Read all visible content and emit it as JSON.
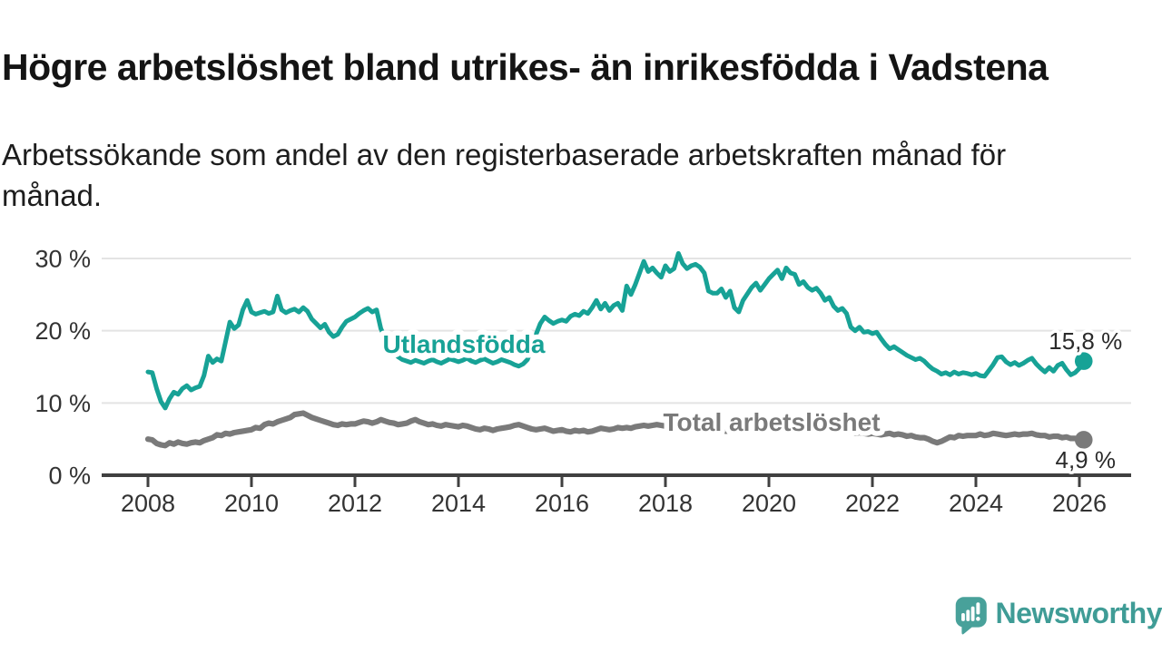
{
  "header": {
    "title": "Högre arbetslöshet bland utrikes- än inrikesfödda i Vadstena",
    "subtitle_lines": [
      "Arbetssökande som andel av den registerbaserade arbetskraften månad för",
      "månad."
    ]
  },
  "colors": {
    "accent_teal": "#17a296",
    "series_gray": "#7a7a7a",
    "grid": "#e4e4e4",
    "axis": "#404040",
    "tick_text": "#333333",
    "value_label_text": "#2b2b2b",
    "logo_teal": "#48a19a",
    "wordmark_teal": "#3f9c96"
  },
  "footer": {
    "brand": "Newsworthy"
  },
  "chart_data": {
    "type": "line",
    "title": "Högre arbetslöshet bland utrikes- än inrikesfödda i Vadstena",
    "subtitle": "Arbetssökande som andel av den registerbaserade arbetskraften månad för månad.",
    "x_unit": "year-month",
    "x_start": 2008.0,
    "x_step_months": 1,
    "xlim": [
      2007.1,
      2027.0
    ],
    "ylim": [
      0,
      32
    ],
    "grid": "horizontal",
    "x_ticks": [
      {
        "value": 2008,
        "label": "2008"
      },
      {
        "value": 2010,
        "label": "2010"
      },
      {
        "value": 2012,
        "label": "2012"
      },
      {
        "value": 2014,
        "label": "2014"
      },
      {
        "value": 2016,
        "label": "2016"
      },
      {
        "value": 2018,
        "label": "2018"
      },
      {
        "value": 2020,
        "label": "2020"
      },
      {
        "value": 2022,
        "label": "2022"
      },
      {
        "value": 2024,
        "label": "2024"
      },
      {
        "value": 2026,
        "label": "2026"
      }
    ],
    "y_ticks": [
      {
        "value": 0,
        "label": "0 %"
      },
      {
        "value": 10,
        "label": "10 %"
      },
      {
        "value": 20,
        "label": "20 %"
      },
      {
        "value": 30,
        "label": "30 %"
      }
    ],
    "series": [
      {
        "name": "Utlandsfödda",
        "color": "#17a296",
        "end_value": 15.8,
        "end_label": "15,8 %",
        "values": [
          14.3,
          14.2,
          12.0,
          10.2,
          9.3,
          10.6,
          11.5,
          11.2,
          12.0,
          12.4,
          11.8,
          12.1,
          12.3,
          13.8,
          16.5,
          15.6,
          16.1,
          15.8,
          18.5,
          21.2,
          20.3,
          20.8,
          22.9,
          24.2,
          22.6,
          22.3,
          22.5,
          22.7,
          22.4,
          22.6,
          24.8,
          22.9,
          22.5,
          22.8,
          23.0,
          22.6,
          23.2,
          22.7,
          21.6,
          21.0,
          20.4,
          20.9,
          19.8,
          19.2,
          19.5,
          20.5,
          21.3,
          21.6,
          21.9,
          22.4,
          22.8,
          23.1,
          22.6,
          22.9,
          20.3,
          19.0,
          17.8,
          17.0,
          16.4,
          16.0,
          15.8,
          15.6,
          15.9,
          15.7,
          15.5,
          15.8,
          16.0,
          15.7,
          15.5,
          15.8,
          16.1,
          15.9,
          15.7,
          15.9,
          16.2,
          15.8,
          15.6,
          15.9,
          16.1,
          15.8,
          15.5,
          15.7,
          16.0,
          15.8,
          15.6,
          15.3,
          15.1,
          15.4,
          16.0,
          17.5,
          19.5,
          21.0,
          21.9,
          21.4,
          21.0,
          21.3,
          21.5,
          21.3,
          22.0,
          22.3,
          22.1,
          22.7,
          22.4,
          23.2,
          24.2,
          23.0,
          23.8,
          22.8,
          23.5,
          23.8,
          22.8,
          26.2,
          25.0,
          26.4,
          28.0,
          29.6,
          28.2,
          28.7,
          28.0,
          27.4,
          29.0,
          28.2,
          28.6,
          30.7,
          29.3,
          28.6,
          29.0,
          29.2,
          28.8,
          28.0,
          25.5,
          25.2,
          25.2,
          25.8,
          24.6,
          25.5,
          23.2,
          22.6,
          24.2,
          25.1,
          26.0,
          26.6,
          25.6,
          26.4,
          27.2,
          27.8,
          28.4,
          27.2,
          28.7,
          28.0,
          27.8,
          26.4,
          26.8,
          26.0,
          25.6,
          25.9,
          25.2,
          24.2,
          24.6,
          23.4,
          22.8,
          23.1,
          22.4,
          20.5,
          20.0,
          20.5,
          19.8,
          19.9,
          19.6,
          19.8,
          18.9,
          18.1,
          17.5,
          17.8,
          17.4,
          17.0,
          16.6,
          16.3,
          16.0,
          16.2,
          15.8,
          15.2,
          14.7,
          14.4,
          14.0,
          14.2,
          13.9,
          14.3,
          14.0,
          14.2,
          14.1,
          13.9,
          14.1,
          13.8,
          13.7,
          14.5,
          15.3,
          16.3,
          16.4,
          15.7,
          15.3,
          15.6,
          15.2,
          15.5,
          15.9,
          16.2,
          15.4,
          14.8,
          14.3,
          14.9,
          14.4,
          15.2,
          15.5,
          14.6,
          13.9,
          14.2,
          14.8,
          15.8
        ]
      },
      {
        "name": "Total arbetslöshet",
        "color": "#7a7a7a",
        "end_value": 4.9,
        "end_label": "4,9 %",
        "values": [
          5.0,
          4.9,
          4.4,
          4.2,
          4.1,
          4.5,
          4.3,
          4.6,
          4.4,
          4.3,
          4.5,
          4.6,
          4.5,
          4.8,
          5.0,
          5.2,
          5.6,
          5.5,
          5.8,
          5.7,
          5.9,
          6.0,
          6.1,
          6.2,
          6.3,
          6.6,
          6.5,
          7.0,
          7.2,
          7.1,
          7.4,
          7.6,
          7.8,
          8.0,
          8.4,
          8.5,
          8.6,
          8.3,
          8.0,
          7.8,
          7.6,
          7.4,
          7.2,
          7.0,
          6.9,
          7.1,
          7.0,
          7.1,
          7.1,
          7.3,
          7.5,
          7.4,
          7.2,
          7.4,
          7.7,
          7.5,
          7.3,
          7.2,
          7.0,
          7.1,
          7.2,
          7.5,
          7.7,
          7.4,
          7.2,
          7.0,
          7.1,
          6.9,
          6.8,
          7.0,
          6.9,
          6.8,
          6.7,
          6.9,
          6.8,
          6.6,
          6.4,
          6.3,
          6.5,
          6.4,
          6.2,
          6.4,
          6.5,
          6.6,
          6.7,
          6.9,
          7.0,
          6.8,
          6.6,
          6.4,
          6.3,
          6.4,
          6.5,
          6.3,
          6.1,
          6.2,
          6.3,
          6.1,
          6.0,
          6.2,
          6.1,
          6.2,
          6.0,
          6.1,
          6.3,
          6.5,
          6.4,
          6.3,
          6.4,
          6.6,
          6.5,
          6.6,
          6.5,
          6.7,
          6.8,
          6.9,
          6.8,
          6.9,
          7.0,
          6.9,
          6.8,
          6.9,
          6.7,
          6.8,
          6.6,
          6.5,
          6.6,
          6.4,
          6.3,
          6.4,
          6.2,
          6.3,
          6.2,
          6.3,
          6.1,
          6.2,
          6.0,
          6.1,
          6.2,
          6.1,
          6.3,
          6.2,
          6.4,
          6.5,
          6.6,
          6.7,
          6.9,
          7.1,
          7.0,
          6.9,
          6.8,
          6.9,
          6.7,
          6.6,
          6.4,
          6.5,
          6.4,
          6.3,
          6.4,
          6.2,
          6.1,
          6.0,
          5.9,
          6.0,
          5.8,
          5.9,
          5.8,
          5.7,
          5.8,
          5.7,
          5.6,
          5.7,
          5.8,
          5.6,
          5.7,
          5.6,
          5.4,
          5.5,
          5.3,
          5.2,
          5.2,
          5.0,
          4.7,
          4.5,
          4.7,
          5.0,
          5.3,
          5.2,
          5.5,
          5.4,
          5.5,
          5.5,
          5.5,
          5.7,
          5.5,
          5.6,
          5.8,
          5.7,
          5.6,
          5.5,
          5.6,
          5.7,
          5.6,
          5.7,
          5.7,
          5.8,
          5.6,
          5.5,
          5.5,
          5.3,
          5.4,
          5.4,
          5.2,
          5.3,
          5.1,
          5.1,
          5.0,
          4.9
        ]
      }
    ]
  }
}
